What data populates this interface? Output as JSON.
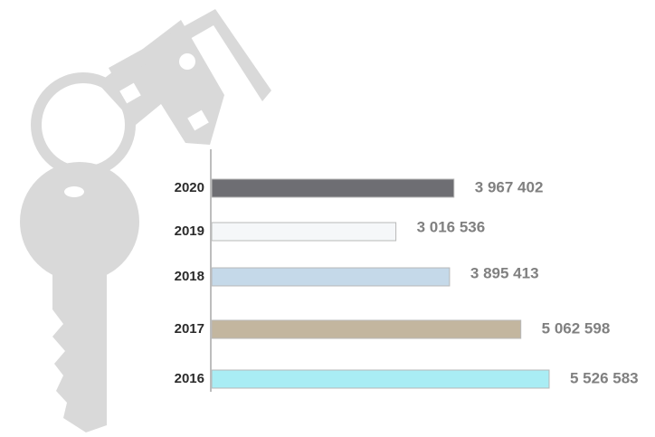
{
  "chart_data": {
    "type": "barh",
    "categories": [
      "2020",
      "2019",
      "2018",
      "2017",
      "2016"
    ],
    "values": [
      3967402,
      3016536,
      3895413,
      5062598,
      5526583
    ],
    "value_labels": [
      "3 967 402",
      "3 016 536",
      "3 895 413",
      "5 062 598",
      "5 526 583"
    ],
    "colors": [
      "#6e6e73",
      "#f5f7f9",
      "#c5d9e9",
      "#c3b69f",
      "#a9edf4"
    ]
  }
}
